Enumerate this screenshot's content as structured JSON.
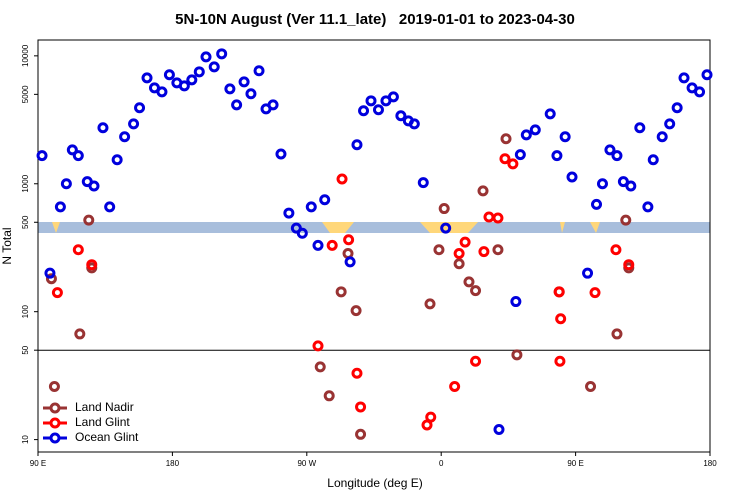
{
  "chart_data": {
    "type": "scatter",
    "title": "5N-10N August (Ver 11.1_late)   2019-01-01 to 2023-04-30",
    "x_label": "Longitude (deg E)",
    "y_label": "N Total",
    "y_log": true,
    "legend": "bottom-left",
    "reference_line": 50,
    "xlim": [
      90,
      540
    ],
    "xticks": [
      {
        "value": 90,
        "label": "90 E"
      },
      180,
      {
        "value": 270,
        "label": "90 W"
      },
      {
        "value": 360,
        "label": "0"
      },
      {
        "value": 450,
        "label": "90 E"
      },
      {
        "value": 540,
        "label": "180"
      }
    ],
    "ylim": [
      8,
      13300
    ],
    "yticks": [
      10,
      50,
      100,
      500,
      1000,
      5000,
      10000
    ],
    "series": [
      {
        "name": "Land Nadir",
        "color": "#993333",
        "x": [
          99,
          101,
          118,
          124,
          126,
          293,
          297.6,
          303,
          279,
          285,
          306,
          352.5,
          358.5,
          362,
          372,
          378.6,
          383,
          388,
          398,
          403.4,
          410.7,
          439,
          460,
          477.7,
          483.6,
          485.6
        ],
        "values": [
          181,
          26,
          67,
          520,
          220,
          143,
          285,
          102,
          37,
          22,
          11,
          115,
          305,
          640,
          237,
          171,
          146,
          880,
          305,
          2250,
          46,
          143,
          26,
          67,
          520,
          220
        ]
      },
      {
        "name": "Land Glint",
        "color": "#ff0000",
        "x": [
          103,
          117,
          126,
          277.5,
          287,
          293.6,
          298,
          303.6,
          306,
          350.5,
          353,
          369,
          372,
          376,
          383,
          388.6,
          392,
          398,
          402.7,
          408,
          439,
          440,
          439.5,
          463,
          477,
          485.6
        ],
        "values": [
          141,
          305,
          233,
          54,
          330,
          1090,
          365,
          33,
          18,
          13,
          15,
          26,
          285,
          350,
          41,
          295,
          550,
          540,
          1570,
          1430,
          143,
          88,
          41,
          141,
          305,
          233
        ]
      },
      {
        "name": "Ocean Glint",
        "color": "#0000dd",
        "x": [
          92.7,
          105,
          109,
          113,
          117,
          123,
          127.5,
          133.5,
          138,
          143,
          148,
          154,
          158,
          163,
          168,
          173,
          178,
          183,
          188,
          193,
          198,
          202.5,
          208,
          213,
          218.5,
          223,
          228,
          232.6,
          238,
          242.7,
          247.4,
          252.7,
          258,
          263,
          267,
          273,
          277.5,
          282,
          299,
          303.6,
          308,
          313,
          318,
          323,
          328,
          333,
          338,
          342,
          348,
          363,
          398.7,
          410,
          413,
          417,
          423,
          433,
          437.5,
          443,
          447.6,
          458,
          464,
          468,
          473,
          477.7,
          482,
          487,
          493,
          498.4,
          502,
          508,
          513,
          518,
          522.6,
          528,
          533,
          538,
          98
        ],
        "values": [
          1660,
          660,
          1000,
          1840,
          1660,
          1040,
          960,
          2740,
          660,
          1540,
          2330,
          2940,
          3930,
          6730,
          5620,
          5230,
          7110,
          6150,
          5830,
          6490,
          7500,
          9820,
          8200,
          10370,
          5520,
          4140,
          6260,
          5050,
          7640,
          3850,
          4140,
          1710,
          590,
          450,
          410,
          660,
          330,
          750,
          245,
          2020,
          3720,
          4450,
          3790,
          4450,
          4780,
          3400,
          3100,
          2940,
          1020,
          450,
          12,
          120,
          1690,
          2410,
          2640,
          3520,
          1660,
          2330,
          1130,
          200,
          690,
          1000,
          1840,
          1660,
          1040,
          960,
          2740,
          660,
          1540,
          2330,
          2940,
          3930,
          6730,
          5620,
          5230,
          7110,
          200
        ]
      }
    ]
  }
}
